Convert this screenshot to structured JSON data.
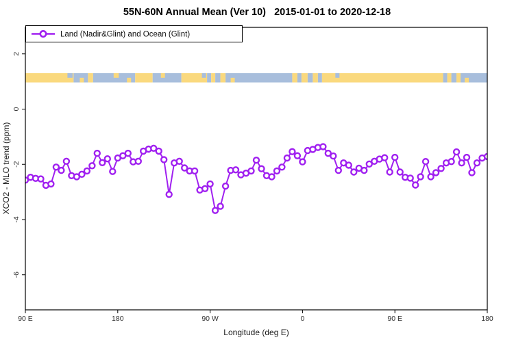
{
  "title": "55N-60N Annual Mean (Ver 10)   2015-01-01 to 2020-12-18",
  "legend": {
    "label": "Land (Nadir&Glint) and Ocean (Glint)",
    "marker": "open-circle-on-line"
  },
  "colors": {
    "series": "#A020F0",
    "marker_fill": "#FFFFFF",
    "land": "#FAD97E",
    "ocean": "#A8BEDC",
    "axis": "#000000",
    "background": "#FFFFFF"
  },
  "chart_data": {
    "type": "line",
    "title": "55N-60N Annual Mean (Ver 10)   2015-01-01 to 2020-12-18",
    "xlabel": "Longitude (deg E)",
    "ylabel": "XCO2 - MLO trend (ppm)",
    "xlim": [
      90,
      540
    ],
    "ylim": [
      -7.27,
      2.96
    ],
    "grid": false,
    "legend_position": "top-left",
    "x_ticks": [
      {
        "value": 90,
        "label": "90 E"
      },
      {
        "value": 180,
        "label": "180"
      },
      {
        "value": 270,
        "label": "90 W"
      },
      {
        "value": 360,
        "label": "0"
      },
      {
        "value": 450,
        "label": "90 E"
      },
      {
        "value": 540,
        "label": "180"
      }
    ],
    "y_ticks": [
      {
        "value": 2,
        "label": "2"
      },
      {
        "value": 0,
        "label": "0"
      },
      {
        "value": -2,
        "label": "-2"
      },
      {
        "value": -4,
        "label": "-4"
      },
      {
        "value": -6,
        "label": "-6"
      }
    ],
    "series": [
      {
        "name": "Land (Nadir&Glint) and Ocean (Glint)",
        "x": [
          90,
          95,
          100,
          105,
          110,
          115,
          120,
          125,
          130,
          135,
          140,
          145,
          150,
          155,
          160,
          165,
          170,
          175,
          180,
          185,
          190,
          195,
          200,
          205,
          210,
          215,
          220,
          225,
          230,
          235,
          240,
          245,
          250,
          255,
          260,
          265,
          270,
          275,
          280,
          285,
          290,
          295,
          300,
          305,
          310,
          315,
          320,
          325,
          330,
          335,
          340,
          345,
          350,
          355,
          360,
          365,
          370,
          375,
          380,
          385,
          390,
          395,
          400,
          405,
          410,
          415,
          420,
          425,
          430,
          435,
          440,
          445,
          450,
          455,
          460,
          465,
          470,
          475,
          480,
          485,
          490,
          495,
          500,
          505,
          510,
          515,
          520,
          525,
          530,
          535,
          540
        ],
        "values": [
          -2.57,
          -2.47,
          -2.51,
          -2.53,
          -2.76,
          -2.71,
          -2.1,
          -2.22,
          -1.89,
          -2.41,
          -2.45,
          -2.36,
          -2.24,
          -2.05,
          -1.6,
          -1.94,
          -1.8,
          -2.26,
          -1.77,
          -1.69,
          -1.6,
          -1.91,
          -1.89,
          -1.52,
          -1.45,
          -1.42,
          -1.52,
          -1.83,
          -3.09,
          -1.95,
          -1.89,
          -2.13,
          -2.24,
          -2.24,
          -2.93,
          -2.88,
          -2.71,
          -3.67,
          -3.52,
          -2.79,
          -2.22,
          -2.2,
          -2.38,
          -2.32,
          -2.24,
          -1.85,
          -2.16,
          -2.41,
          -2.45,
          -2.24,
          -2.1,
          -1.77,
          -1.54,
          -1.69,
          -1.91,
          -1.5,
          -1.46,
          -1.39,
          -1.36,
          -1.6,
          -1.7,
          -2.22,
          -1.95,
          -2.03,
          -2.28,
          -2.14,
          -2.22,
          -1.99,
          -1.89,
          -1.81,
          -1.76,
          -2.28,
          -1.75,
          -2.28,
          -2.47,
          -2.5,
          -2.75,
          -2.45,
          -1.9,
          -2.45,
          -2.3,
          -2.15,
          -1.95,
          -1.9,
          -1.55,
          -1.95,
          -1.75,
          -2.3,
          -1.95,
          -1.77,
          -1.72
        ]
      }
    ],
    "map_band": {
      "description": "land/ocean strip for 55N-60N latitude band",
      "value_range": [
        0.965,
        1.3
      ],
      "segments": [
        {
          "from": 90,
          "to": 137,
          "type": "land"
        },
        {
          "from": 137,
          "to": 151,
          "type": "ocean"
        },
        {
          "from": 151,
          "to": 156,
          "type": "land"
        },
        {
          "from": 156,
          "to": 197,
          "type": "ocean"
        },
        {
          "from": 197,
          "to": 214,
          "type": "land"
        },
        {
          "from": 214,
          "to": 242,
          "type": "ocean"
        },
        {
          "from": 242,
          "to": 267,
          "type": "land"
        },
        {
          "from": 267,
          "to": 271,
          "type": "ocean"
        },
        {
          "from": 271,
          "to": 275,
          "type": "land"
        },
        {
          "from": 275,
          "to": 280,
          "type": "ocean"
        },
        {
          "from": 280,
          "to": 285,
          "type": "land"
        },
        {
          "from": 285,
          "to": 350,
          "type": "ocean"
        },
        {
          "from": 350,
          "to": 355,
          "type": "land"
        },
        {
          "from": 355,
          "to": 359,
          "type": "ocean"
        },
        {
          "from": 359,
          "to": 365,
          "type": "land"
        },
        {
          "from": 365,
          "to": 370,
          "type": "ocean"
        },
        {
          "from": 370,
          "to": 375,
          "type": "land"
        },
        {
          "from": 375,
          "to": 379,
          "type": "ocean"
        },
        {
          "from": 379,
          "to": 497,
          "type": "land"
        },
        {
          "from": 497,
          "to": 501,
          "type": "ocean"
        },
        {
          "from": 501,
          "to": 505,
          "type": "land"
        },
        {
          "from": 505,
          "to": 510,
          "type": "ocean"
        },
        {
          "from": 510,
          "to": 514,
          "type": "land"
        },
        {
          "from": 514,
          "to": 540,
          "type": "ocean"
        }
      ],
      "patches": [
        {
          "from": 131,
          "to": 136,
          "row": "top",
          "type": "ocean"
        },
        {
          "from": 143,
          "to": 147,
          "row": "bottom",
          "type": "land"
        },
        {
          "from": 176,
          "to": 181,
          "row": "top",
          "type": "land"
        },
        {
          "from": 189,
          "to": 193,
          "row": "bottom",
          "type": "land"
        },
        {
          "from": 222,
          "to": 226,
          "row": "top",
          "type": "land"
        },
        {
          "from": 262,
          "to": 266,
          "row": "top",
          "type": "ocean"
        },
        {
          "from": 290,
          "to": 294,
          "row": "bottom",
          "type": "land"
        },
        {
          "from": 345,
          "to": 349,
          "row": "top",
          "type": "ocean"
        },
        {
          "from": 392,
          "to": 396,
          "row": "top",
          "type": "ocean"
        },
        {
          "from": 518,
          "to": 522,
          "row": "bottom",
          "type": "land"
        }
      ]
    }
  }
}
